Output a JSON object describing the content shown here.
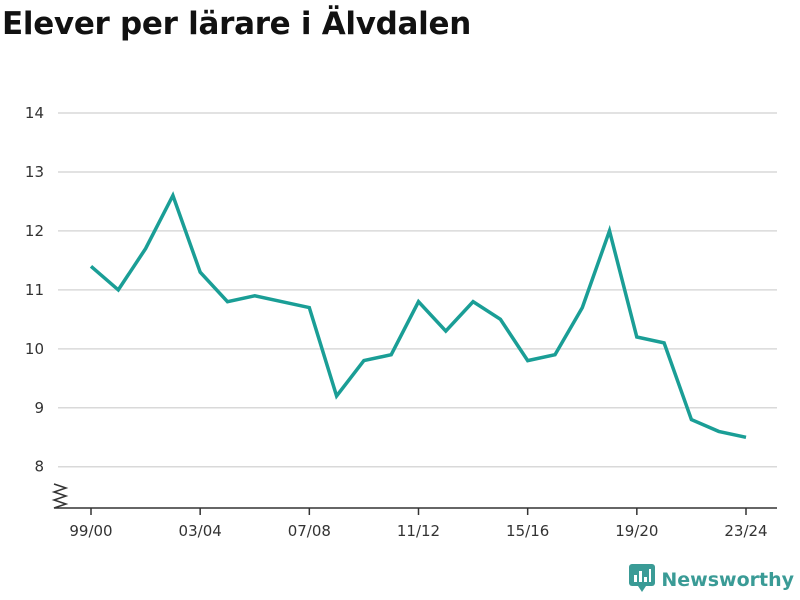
{
  "title": "Elever per lärare i Älvdalen",
  "brand": {
    "name": "Newsworthy",
    "icon": "newsworthy-logo-icon",
    "color": "#3a9b96"
  },
  "chart_data": {
    "type": "line",
    "title": "Elever per lärare i Älvdalen",
    "xlabel": "",
    "ylabel": "",
    "categories": [
      "99/00",
      "00/01",
      "01/02",
      "02/03",
      "03/04",
      "04/05",
      "05/06",
      "06/07",
      "07/08",
      "08/09",
      "09/10",
      "10/11",
      "11/12",
      "12/13",
      "13/14",
      "14/15",
      "15/16",
      "16/17",
      "17/18",
      "18/19",
      "19/20",
      "20/21",
      "21/22",
      "22/23",
      "23/24"
    ],
    "x_tick_labels": [
      "99/00",
      "03/04",
      "07/08",
      "11/12",
      "15/16",
      "19/20",
      "23/24"
    ],
    "y_ticks": [
      8,
      9,
      10,
      11,
      12,
      13,
      14
    ],
    "ylim": [
      7.3,
      14
    ],
    "y_axis_break": true,
    "grid": true,
    "line_color": "#1a9e96",
    "series": [
      {
        "values": [
          11.4,
          11.0,
          11.7,
          12.6,
          11.3,
          10.8,
          10.9,
          10.8,
          10.7,
          9.2,
          9.8,
          9.9,
          10.8,
          10.3,
          10.8,
          10.5,
          9.8,
          9.9,
          10.7,
          12.0,
          10.2,
          10.1,
          8.8,
          8.6,
          8.5
        ]
      }
    ]
  }
}
